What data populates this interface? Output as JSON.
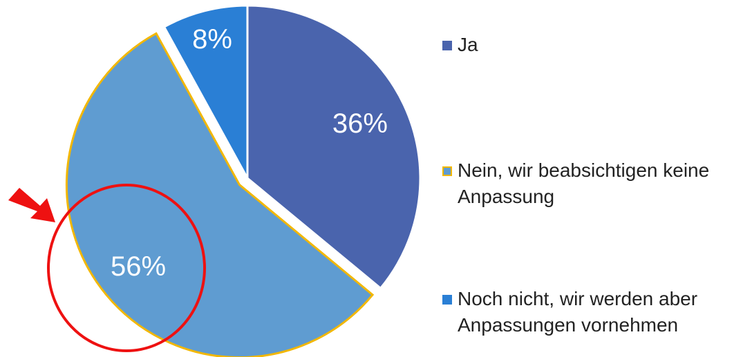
{
  "chart_data": {
    "type": "pie",
    "categories": [
      "Ja",
      "Nein, wir beabsichtigen keine Anpassung",
      "Noch nicht, wir werden aber Anpassungen vornehmen"
    ],
    "values": [
      36,
      56,
      8
    ],
    "value_labels": [
      "36%",
      "56%",
      "8%"
    ],
    "colors": [
      "#4a64ad",
      "#5f9cd1",
      "#2a7fd5"
    ],
    "edgecolors": [
      "#ffffff",
      "#f2b700",
      "#ffffff"
    ],
    "legend": "right"
  }
}
